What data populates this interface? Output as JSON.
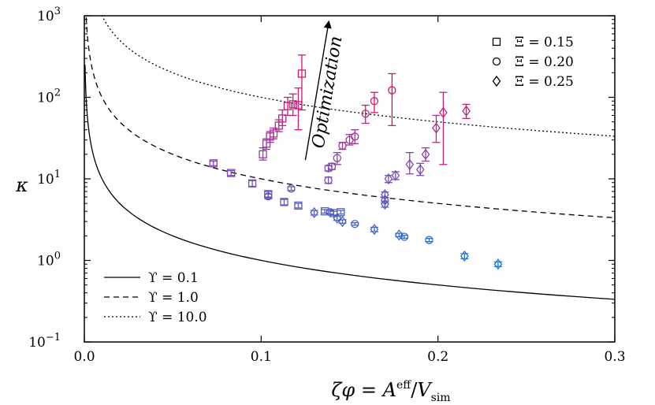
{
  "chart_data": {
    "type": "scatter",
    "xlabel": "ζφ = A^eff / V_sim",
    "ylabel": "κ",
    "x_axis_label": {
      "lhs": "ζφ",
      "eq": " = ",
      "A": "A",
      "eff": "eff",
      "slash": "/",
      "V": "V",
      "sim": "sim"
    },
    "y_axis_label": "κ",
    "xlim": [
      0.0,
      0.3
    ],
    "ylim": [
      0.1,
      1000
    ],
    "y_scale": "log",
    "x_ticks": [
      {
        "value": 0.0,
        "label": "0.0"
      },
      {
        "value": 0.1,
        "label": "0.1"
      },
      {
        "value": 0.2,
        "label": "0.2"
      },
      {
        "value": 0.3,
        "label": "0.3"
      }
    ],
    "y_ticks": [
      {
        "value": 0.1,
        "base": "10",
        "exp": "−1"
      },
      {
        "value": 1,
        "base": "10",
        "exp": "0"
      },
      {
        "value": 10,
        "base": "10",
        "exp": "1"
      },
      {
        "value": 100,
        "base": "10",
        "exp": "2"
      },
      {
        "value": 1000,
        "base": "10",
        "exp": "3"
      }
    ],
    "annotation": {
      "text": "Optimization",
      "from": [
        0.125,
        17
      ],
      "to": [
        0.138,
        900
      ]
    },
    "curves": [
      {
        "name": "ϒ = 0.1",
        "upsilon": 0.1,
        "style": "solid"
      },
      {
        "name": "ϒ = 1.0",
        "upsilon": 1.0,
        "style": "dashed"
      },
      {
        "name": "ϒ = 10.0",
        "upsilon": 10.0,
        "style": "dotted"
      }
    ],
    "marker_legend": [
      {
        "marker": "square",
        "label": "Ξ = 0.15"
      },
      {
        "marker": "circle",
        "label": "Ξ = 0.20"
      },
      {
        "marker": "diamond",
        "label": "Ξ = 0.25"
      }
    ],
    "series": [
      {
        "name": "Ξ = 0.15",
        "marker": "square",
        "points": [
          {
            "x": 0.073,
            "y": 15.5,
            "lo": 14.5,
            "hi": 16.5
          },
          {
            "x": 0.083,
            "y": 11.8,
            "lo": 11.0,
            "hi": 12.6
          },
          {
            "x": 0.095,
            "y": 8.8,
            "lo": 8.1,
            "hi": 9.5
          },
          {
            "x": 0.104,
            "y": 6.5,
            "lo": 6.0,
            "hi": 7.0
          },
          {
            "x": 0.113,
            "y": 5.2,
            "lo": 4.8,
            "hi": 5.6
          },
          {
            "x": 0.121,
            "y": 4.7,
            "lo": 4.4,
            "hi": 5.0
          },
          {
            "x": 0.136,
            "y": 4.0,
            "lo": 3.8,
            "hi": 4.2
          },
          {
            "x": 0.141,
            "y": 3.8,
            "lo": 3.6,
            "hi": 4.0
          },
          {
            "x": 0.145,
            "y": 3.9,
            "lo": 3.7,
            "hi": 4.1
          },
          {
            "x": 0.101,
            "y": 20,
            "lo": 17,
            "hi": 24
          },
          {
            "x": 0.103,
            "y": 27,
            "lo": 23,
            "hi": 31
          },
          {
            "x": 0.105,
            "y": 33,
            "lo": 28,
            "hi": 38
          },
          {
            "x": 0.107,
            "y": 36,
            "lo": 31,
            "hi": 42
          },
          {
            "x": 0.11,
            "y": 45,
            "lo": 38,
            "hi": 53
          },
          {
            "x": 0.112,
            "y": 55,
            "lo": 45,
            "hi": 70
          },
          {
            "x": 0.115,
            "y": 78,
            "lo": 60,
            "hi": 100
          },
          {
            "x": 0.118,
            "y": 82,
            "lo": 60,
            "hi": 110
          },
          {
            "x": 0.121,
            "y": 80,
            "lo": 40,
            "hi": 130
          },
          {
            "x": 0.123,
            "y": 195,
            "lo": 70,
            "hi": 330
          }
        ]
      },
      {
        "name": "Ξ = 0.20",
        "marker": "circle",
        "points": [
          {
            "x": 0.104,
            "y": 6.1,
            "lo": 5.7,
            "hi": 6.5
          },
          {
            "x": 0.117,
            "y": 7.6,
            "lo": 7.2,
            "hi": 8.0
          },
          {
            "x": 0.139,
            "y": 3.9,
            "lo": 3.7,
            "hi": 4.1
          },
          {
            "x": 0.153,
            "y": 2.8,
            "lo": 2.7,
            "hi": 2.9
          },
          {
            "x": 0.181,
            "y": 1.95,
            "lo": 1.87,
            "hi": 2.03
          },
          {
            "x": 0.195,
            "y": 1.78,
            "lo": 1.7,
            "hi": 1.86
          },
          {
            "x": 0.138,
            "y": 9.6,
            "lo": 8.8,
            "hi": 10.5
          },
          {
            "x": 0.138,
            "y": 13.5,
            "lo": 12.5,
            "hi": 14.5
          },
          {
            "x": 0.14,
            "y": 14.2,
            "lo": 13,
            "hi": 15.5
          },
          {
            "x": 0.143,
            "y": 18,
            "lo": 15,
            "hi": 21
          },
          {
            "x": 0.146,
            "y": 25.5,
            "lo": 23,
            "hi": 28
          },
          {
            "x": 0.15,
            "y": 30,
            "lo": 26,
            "hi": 35
          },
          {
            "x": 0.153,
            "y": 33,
            "lo": 27,
            "hi": 40
          },
          {
            "x": 0.159,
            "y": 63,
            "lo": 48,
            "hi": 80
          },
          {
            "x": 0.164,
            "y": 90,
            "lo": 65,
            "hi": 115
          },
          {
            "x": 0.174,
            "y": 122,
            "lo": 45,
            "hi": 195
          }
        ]
      },
      {
        "name": "Ξ = 0.25",
        "marker": "diamond",
        "points": [
          {
            "x": 0.13,
            "y": 3.85,
            "lo": 3.6,
            "hi": 4.1
          },
          {
            "x": 0.143,
            "y": 3.3,
            "lo": 3.1,
            "hi": 3.5
          },
          {
            "x": 0.146,
            "y": 3.0,
            "lo": 2.85,
            "hi": 3.15
          },
          {
            "x": 0.164,
            "y": 2.4,
            "lo": 2.25,
            "hi": 2.55
          },
          {
            "x": 0.178,
            "y": 2.05,
            "lo": 1.95,
            "hi": 2.15
          },
          {
            "x": 0.215,
            "y": 1.13,
            "lo": 1.05,
            "hi": 1.21
          },
          {
            "x": 0.234,
            "y": 0.9,
            "lo": 0.84,
            "hi": 0.96
          },
          {
            "x": 0.17,
            "y": 4.9,
            "lo": 4.5,
            "hi": 5.3
          },
          {
            "x": 0.17,
            "y": 5.5,
            "lo": 5.1,
            "hi": 5.9
          },
          {
            "x": 0.17,
            "y": 6.4,
            "lo": 5.9,
            "hi": 6.9
          },
          {
            "x": 0.172,
            "y": 10,
            "lo": 9.0,
            "hi": 11.0
          },
          {
            "x": 0.176,
            "y": 11,
            "lo": 9.8,
            "hi": 12.2
          },
          {
            "x": 0.184,
            "y": 15,
            "lo": 11.5,
            "hi": 21
          },
          {
            "x": 0.19,
            "y": 13,
            "lo": 11,
            "hi": 15.5
          },
          {
            "x": 0.193,
            "y": 20,
            "lo": 16.5,
            "hi": 24
          },
          {
            "x": 0.199,
            "y": 42,
            "lo": 28,
            "hi": 60
          },
          {
            "x": 0.203,
            "y": 65,
            "lo": 15,
            "hi": 115
          },
          {
            "x": 0.216,
            "y": 68,
            "lo": 55,
            "hi": 82
          }
        ]
      }
    ]
  }
}
